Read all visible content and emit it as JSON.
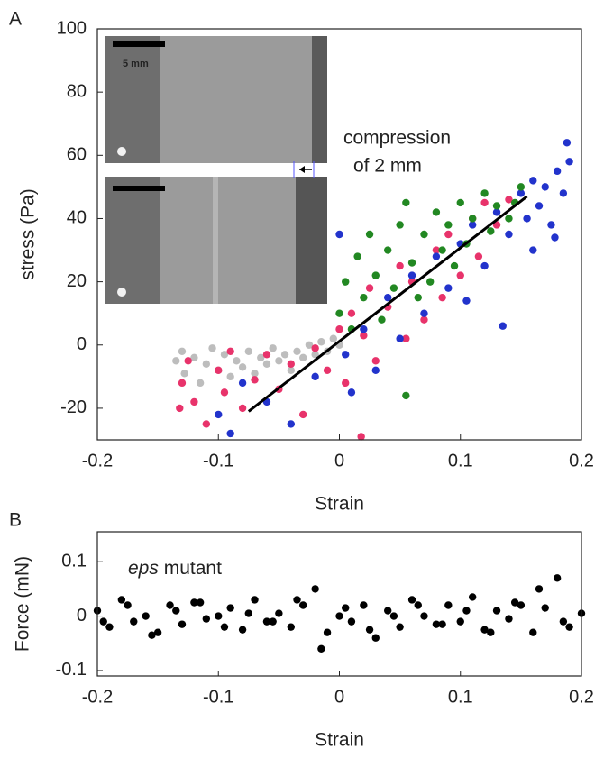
{
  "chart_data": [
    {
      "type": "scatter",
      "panel_label": "A",
      "xlabel": "Strain",
      "ylabel": "stress (Pa)",
      "xlim": [
        -0.2,
        0.2
      ],
      "xticks": [
        -0.2,
        -0.1,
        0,
        0.1,
        0.2
      ],
      "ylim": [
        -30,
        100
      ],
      "yticks": [
        -20,
        0,
        20,
        40,
        60,
        80,
        100
      ],
      "scale_bar_label": "5 mm",
      "annotation_lines": [
        "compression",
        "of 2 mm"
      ],
      "series": [
        {
          "color": "#bdbdbd",
          "x": [
            -0.135,
            -0.13,
            -0.128,
            -0.12,
            -0.115,
            -0.11,
            -0.105,
            -0.1,
            -0.095,
            -0.09,
            -0.085,
            -0.08,
            -0.075,
            -0.07,
            -0.065,
            -0.06,
            -0.055,
            -0.05,
            -0.045,
            -0.04,
            -0.035,
            -0.03,
            -0.025,
            -0.02,
            -0.015,
            -0.01,
            -0.005,
            0
          ],
          "values": [
            -5,
            -2,
            -9,
            -4,
            -12,
            -6,
            -1,
            -8,
            -3,
            -10,
            -5,
            -7,
            -2,
            -9,
            -4,
            -6,
            -1,
            -5,
            -3,
            -8,
            -2,
            -4,
            0,
            -3,
            1,
            -2,
            2,
            0
          ]
        },
        {
          "color": "#e8336b",
          "x": [
            -0.132,
            -0.13,
            -0.125,
            -0.12,
            -0.11,
            -0.1,
            -0.095,
            -0.09,
            -0.08,
            -0.07,
            -0.06,
            -0.05,
            -0.04,
            -0.03,
            -0.02,
            -0.01,
            0,
            0.005,
            0.01,
            0.02,
            0.025,
            0.03,
            0.04,
            0.05,
            0.055,
            0.06,
            0.07,
            0.08,
            0.085,
            0.09,
            0.1,
            0.11,
            0.115,
            0.12,
            0.13,
            0.14,
            0.018
          ],
          "values": [
            -20,
            -12,
            -5,
            -18,
            -25,
            -8,
            -15,
            -2,
            -20,
            -11,
            -3,
            -14,
            -6,
            -22,
            -1,
            -8,
            5,
            -12,
            10,
            3,
            18,
            -5,
            12,
            25,
            2,
            20,
            8,
            30,
            15,
            35,
            22,
            40,
            28,
            45,
            38,
            46,
            -29
          ]
        },
        {
          "color": "#2233cc",
          "x": [
            -0.1,
            -0.09,
            -0.08,
            -0.06,
            -0.04,
            -0.02,
            0,
            0.005,
            0.01,
            0.02,
            0.03,
            0.04,
            0.05,
            0.06,
            0.07,
            0.08,
            0.09,
            0.1,
            0.105,
            0.11,
            0.12,
            0.13,
            0.135,
            0.14,
            0.15,
            0.155,
            0.16,
            0.165,
            0.17,
            0.175,
            0.18,
            0.185,
            0.188,
            0.19,
            0.178,
            0.16
          ],
          "values": [
            -22,
            -28,
            -12,
            -18,
            -25,
            -10,
            35,
            -3,
            -15,
            5,
            -8,
            15,
            2,
            22,
            10,
            28,
            18,
            32,
            14,
            38,
            25,
            42,
            6,
            35,
            48,
            40,
            52,
            44,
            50,
            38,
            55,
            48,
            64,
            58,
            34,
            30
          ]
        },
        {
          "color": "#228822",
          "x": [
            0,
            0.005,
            0.01,
            0.015,
            0.02,
            0.025,
            0.03,
            0.035,
            0.04,
            0.045,
            0.05,
            0.055,
            0.055,
            0.06,
            0.07,
            0.075,
            0.08,
            0.085,
            0.09,
            0.095,
            0.1,
            0.105,
            0.11,
            0.12,
            0.125,
            0.13,
            0.14,
            0.15,
            0.145,
            0.065
          ],
          "values": [
            10,
            20,
            5,
            28,
            15,
            35,
            22,
            8,
            30,
            18,
            38,
            -16,
            45,
            26,
            35,
            20,
            42,
            30,
            38,
            25,
            45,
            32,
            40,
            48,
            36,
            44,
            40,
            50,
            45,
            15
          ]
        }
      ],
      "fit": {
        "color": "#000000",
        "x": [
          -0.075,
          0.155
        ],
        "values": [
          -21,
          47
        ]
      }
    },
    {
      "type": "scatter",
      "panel_label": "B",
      "xlabel": "Strain",
      "ylabel": "Force (mN)",
      "annotation_italic": "eps",
      "annotation": "mutant",
      "xlim": [
        -0.2,
        0.2
      ],
      "xticks": [
        -0.2,
        -0.1,
        0,
        0.1,
        0.2
      ],
      "ylim": [
        -0.11,
        0.155
      ],
      "yticks": [
        -0.1,
        0,
        0.1
      ],
      "series": [
        {
          "color": "#000000",
          "x": [
            -0.2,
            -0.19,
            -0.18,
            -0.17,
            -0.16,
            -0.15,
            -0.14,
            -0.13,
            -0.12,
            -0.11,
            -0.1,
            -0.09,
            -0.08,
            -0.07,
            -0.06,
            -0.05,
            -0.04,
            -0.03,
            -0.02,
            -0.01,
            0,
            0.01,
            0.02,
            0.03,
            0.04,
            0.05,
            0.06,
            0.07,
            0.08,
            0.09,
            0.1,
            0.11,
            0.12,
            0.13,
            0.14,
            0.15,
            0.16,
            0.17,
            0.18,
            0.19,
            0.2
          ],
          "values": [
            0.01,
            -0.02,
            0.03,
            -0.01,
            0,
            -0.03,
            0.02,
            -0.015,
            0.025,
            -0.005,
            0,
            0.015,
            -0.025,
            0.03,
            -0.01,
            0.005,
            -0.02,
            0.02,
            0.05,
            -0.03,
            0,
            -0.01,
            0.02,
            -0.04,
            0.01,
            -0.02,
            0.03,
            0,
            -0.015,
            0.02,
            -0.01,
            0.035,
            -0.025,
            0.01,
            -0.005,
            0.02,
            -0.03,
            0.015,
            0.07,
            -0.02,
            0.005
          ]
        },
        {
          "color": "#000000",
          "x": [
            -0.195,
            -0.175,
            -0.155,
            -0.135,
            -0.115,
            -0.095,
            -0.075,
            -0.055,
            -0.035,
            -0.015,
            0.005,
            0.025,
            0.045,
            0.065,
            0.085,
            0.105,
            0.125,
            0.145,
            0.165,
            0.185
          ],
          "values": [
            -0.01,
            0.02,
            -0.035,
            0.01,
            0.025,
            -0.02,
            0.005,
            -0.01,
            0.03,
            -0.06,
            0.015,
            -0.025,
            0,
            0.02,
            -0.015,
            0.01,
            -0.03,
            0.025,
            0.05,
            -0.01
          ]
        }
      ]
    }
  ]
}
